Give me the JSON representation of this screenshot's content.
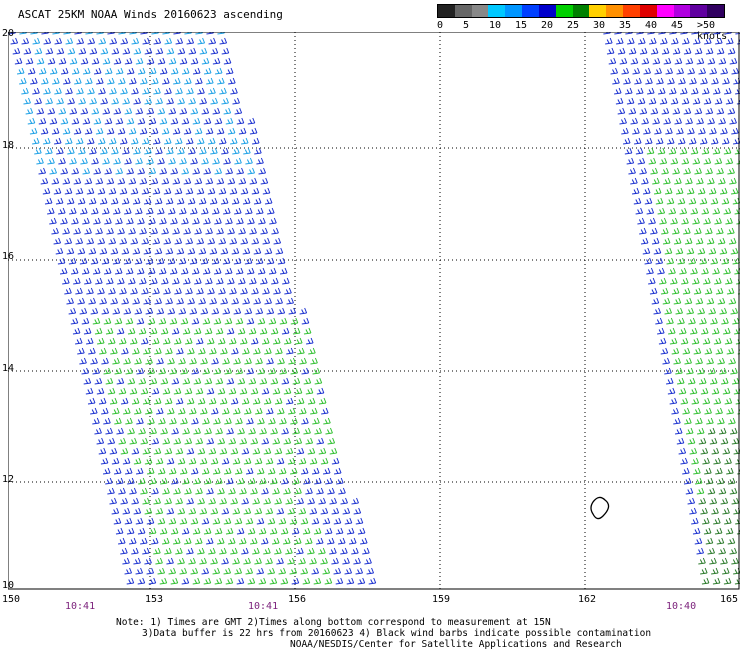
{
  "title": "ASCAT 25KM NOAA Winds 20160623 ascending",
  "legend": {
    "colors": [
      "#222222",
      "#666666",
      "#888888",
      "#00c8ff",
      "#0096ff",
      "#0040ff",
      "#0000cc",
      "#00d000",
      "#008000",
      "#ffd000",
      "#ff9000",
      "#ff4000",
      "#e00000",
      "#ff00ff",
      "#b000e0",
      "#6000a0",
      "#300060"
    ],
    "labels": [
      "0",
      "5",
      "10",
      "15",
      "20",
      "25",
      "30",
      "35",
      "40",
      "45",
      ">50 knots"
    ]
  },
  "axes": {
    "lat_labels": [
      "20",
      "18",
      "16",
      "14",
      "12",
      "10"
    ],
    "lon_labels": [
      "150",
      "153",
      "156",
      "159",
      "162",
      "165"
    ],
    "times": [
      "10:41",
      "10:41",
      "10:40"
    ]
  },
  "notes": [
    "Note: 1) Times are GMT 2)Times along bottom correspond to measurement at 15N",
    "3)Data buffer is 22 hrs from 20160623 4) Black wind barbs indicate possible contamination",
    "NOAA/NESDIS/Center for Satellite Applications and Research"
  ]
}
